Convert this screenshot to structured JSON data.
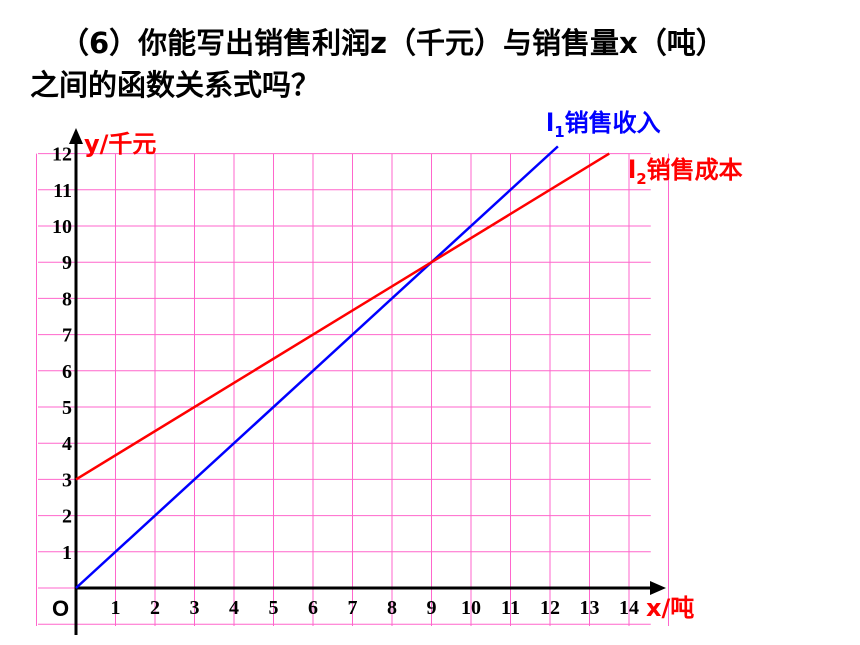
{
  "question": {
    "line1": "（6）你能写出销售利润z（千元）与销售量x（吨）",
    "line2": "之间的函数关系式吗？"
  },
  "chart_data": {
    "type": "line",
    "xlabel": "x/吨",
    "ylabel": "y/千元",
    "origin_label": "O",
    "xlim": [
      0,
      14.5
    ],
    "ylim": [
      0,
      12
    ],
    "x_ticks": [
      "1",
      "2",
      "3",
      "4",
      "5",
      "6",
      "7",
      "8",
      "9",
      "10",
      "11",
      "12",
      "13",
      "14"
    ],
    "y_ticks": [
      "1",
      "2",
      "3",
      "4",
      "5",
      "6",
      "7",
      "8",
      "9",
      "10",
      "11",
      "12"
    ],
    "grid": true,
    "grid_color": "#ff66cc",
    "series": [
      {
        "name": "销售收入",
        "label_main": "l",
        "label_sub": "1",
        "color": "#0000ff",
        "x": [
          0,
          12.2
        ],
        "y": [
          0,
          12.2
        ]
      },
      {
        "name": "销售成本",
        "label_main": "l",
        "label_sub": "2",
        "color": "#ff0000",
        "x": [
          0,
          13.5
        ],
        "y": [
          3,
          12
        ]
      }
    ]
  }
}
